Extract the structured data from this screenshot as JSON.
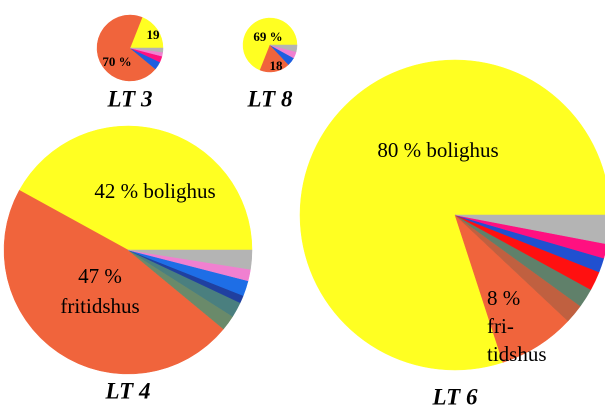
{
  "chart_data": [
    {
      "type": "pie",
      "title": "LT 3",
      "values": [
        19,
        70,
        4,
        3,
        2,
        2
      ],
      "colors": [
        "#ffff22",
        "#f0643c",
        "#1e5ee0",
        "#ff1080",
        "#f080d0",
        "#b4b4b4"
      ],
      "value_labels": [
        "19",
        "70 %",
        null,
        null,
        null,
        null
      ]
    },
    {
      "type": "pie",
      "title": "LT 8",
      "values": [
        69,
        18,
        5,
        4,
        4
      ],
      "colors": [
        "#ffff22",
        "#f0643c",
        "#1e5ee0",
        "#f080d0",
        "#b4b4b4"
      ],
      "value_labels": [
        "69 %",
        "18",
        null,
        null,
        null
      ]
    },
    {
      "type": "pie",
      "title": "LT 4",
      "values": [
        42,
        47,
        2,
        2,
        1,
        2,
        1.5,
        2.5
      ],
      "colors": [
        "#ffff22",
        "#f0643c",
        "#6a8a6a",
        "#4a7f7f",
        "#2040a0",
        "#1e6ee6",
        "#f080d0",
        "#b4b4b4"
      ],
      "value_labels": [
        "42 % bolighus",
        [
          "47 %",
          "fritidshus"
        ],
        null,
        null,
        null,
        null,
        null,
        null
      ]
    },
    {
      "type": "pie",
      "title": "LT 6",
      "values": [
        80,
        8,
        2,
        2,
        2,
        1.5,
        1.5,
        3
      ],
      "colors": [
        "#ffff22",
        "#f0643c",
        "#c06040",
        "#60806a",
        "#ff1010",
        "#2050d0",
        "#ff1080",
        "#b4b4b4"
      ],
      "value_labels": [
        "80 % bolighus",
        [
          "8 %",
          "fri-",
          "tidshus"
        ],
        null,
        null,
        null,
        null,
        null,
        null
      ]
    }
  ]
}
